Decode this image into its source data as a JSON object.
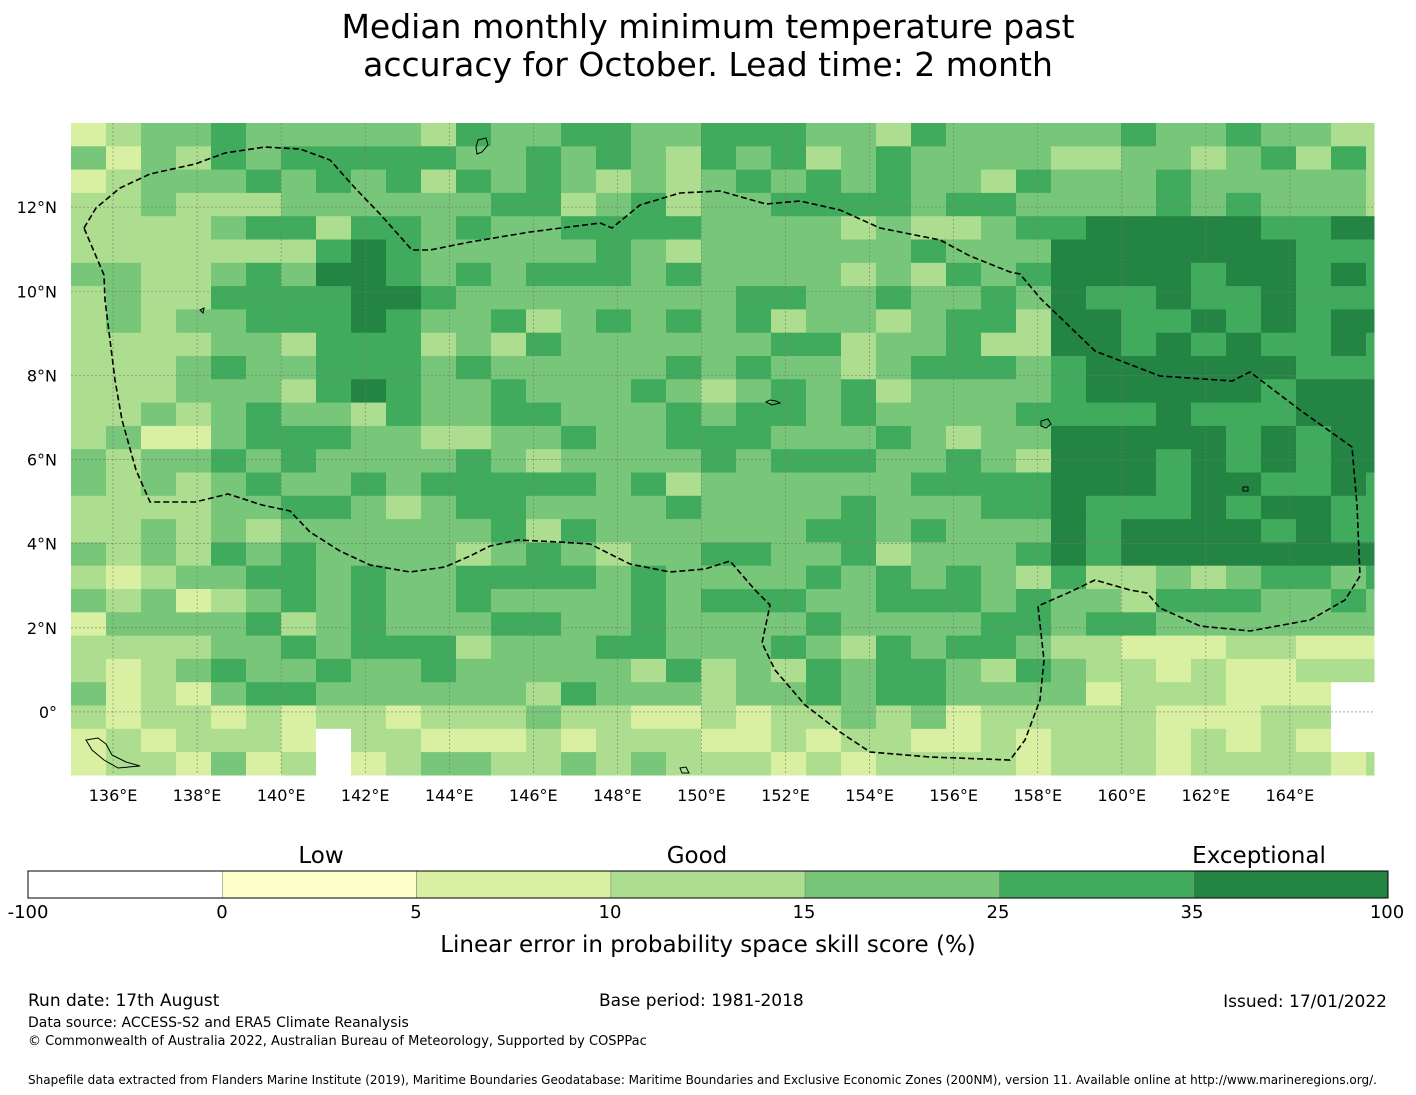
{
  "title": {
    "line1": "Median monthly minimum temperature past",
    "line2": "accuracy for October. Lead time: 2 month"
  },
  "map": {
    "lon_labels": [
      "136°E",
      "138°E",
      "140°E",
      "142°E",
      "144°E",
      "146°E",
      "148°E",
      "150°E",
      "152°E",
      "154°E",
      "156°E",
      "158°E",
      "160°E",
      "162°E",
      "164°E"
    ],
    "lat_labels": [
      "12°N",
      "10°N",
      "8°N",
      "6°N",
      "4°N",
      "2°N",
      "0°"
    ],
    "lon_range": [
      135.0,
      166.0
    ],
    "lat_range": [
      -1.5,
      14.0
    ],
    "grid_lines": true,
    "boundary": "dashed EEZ outline (FSM)"
  },
  "colorbar": {
    "categories": [
      "Low",
      "Good",
      "Exceptional"
    ],
    "ticks": [
      "-100",
      "0",
      "5",
      "10",
      "15",
      "25",
      "35",
      "100"
    ],
    "colors": [
      "#ffffff",
      "#ffffcc",
      "#d9f0a3",
      "#addd8e",
      "#78c679",
      "#41ab5d",
      "#238443"
    ],
    "label": "Linear error in probability space skill score (%)"
  },
  "footer": {
    "run_date": "Run date: 17th August",
    "base_period": "Base period: 1981-2018",
    "issued": "Issued: 17/01/2022",
    "data_source": "Data source: ACCESS-S2 and ERA5 Climate Reanalysis",
    "copyright": "© Commonwealth of Australia 2022, Australian Bureau of Meteorology, Supported by COSPPac",
    "shapefile": "Shapefile data extracted from Flanders Marine Institute (2019), Maritime Boundaries Geodatabase: Maritime Boundaries and Exclusive Economic Zones (200NM), version 11. Available online at http://www.marineregions.org/."
  }
}
